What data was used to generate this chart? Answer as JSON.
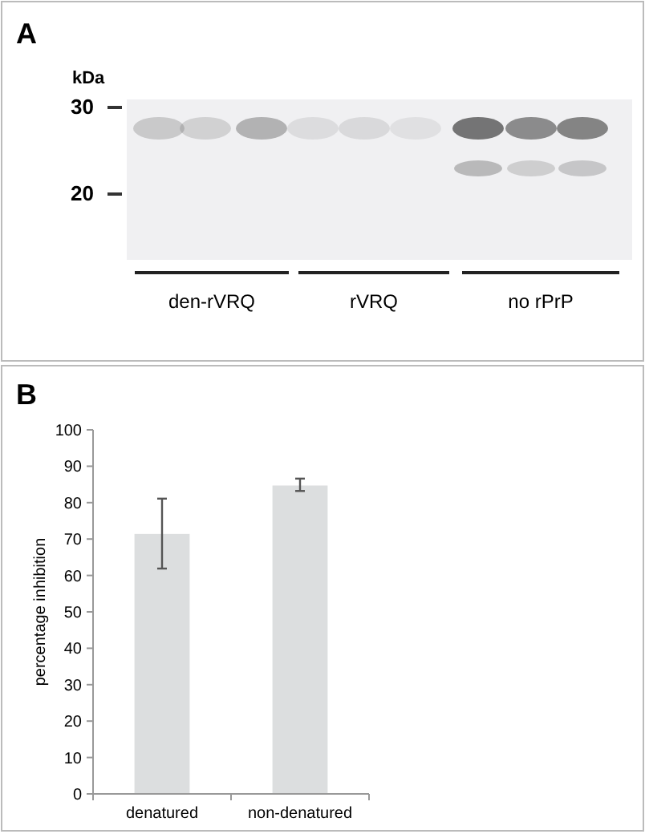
{
  "chart_data": [
    {
      "type": "other",
      "title": "A",
      "annotations": [
        "kDa",
        "30",
        "20",
        "den-rVRQ",
        "rVRQ",
        "no rPrP"
      ]
    },
    {
      "type": "bar",
      "title": "B",
      "categories": [
        "denatured",
        "non-denatured"
      ],
      "values": [
        71.4,
        84.7
      ],
      "errors": [
        [
          61.9,
          81.1
        ],
        [
          83.2,
          86.6
        ]
      ],
      "color": "#dcdedf",
      "ylabel": "percentage inhibition",
      "ylim": [
        0,
        100
      ],
      "yticks": [
        0,
        10,
        20,
        30,
        40,
        50,
        60,
        70,
        80,
        90,
        100
      ],
      "grid": false
    }
  ]
}
